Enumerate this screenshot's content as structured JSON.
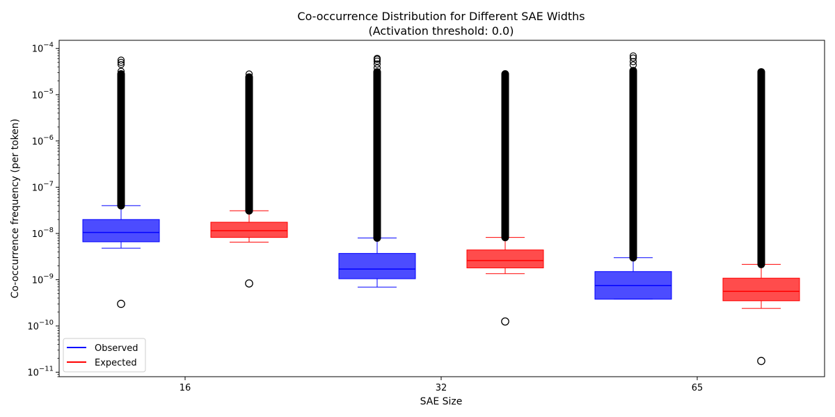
{
  "chart_data": {
    "type": "boxplot",
    "title": "Co-occurrence Distribution for Different SAE Widths",
    "subtitle": "(Activation threshold: 0.0)",
    "xlabel": "SAE Size",
    "ylabel": "Co-occurrence frequency (per token)",
    "yscale": "log",
    "ylim": [
      8e-12,
      0.00015
    ],
    "y_ticks": [
      {
        "value": 1e-11,
        "base": "10",
        "exp": "−11"
      },
      {
        "value": 1e-10,
        "base": "10",
        "exp": "−10"
      },
      {
        "value": 1e-09,
        "base": "10",
        "exp": "−9"
      },
      {
        "value": 1e-08,
        "base": "10",
        "exp": "−8"
      },
      {
        "value": 1e-07,
        "base": "10",
        "exp": "−7"
      },
      {
        "value": 1e-06,
        "base": "10",
        "exp": "−6"
      },
      {
        "value": 1e-05,
        "base": "10",
        "exp": "−5"
      },
      {
        "value": 0.0001,
        "base": "10",
        "exp": "−4"
      }
    ],
    "categories": [
      "16",
      "32",
      "65"
    ],
    "series_colors": {
      "Observed": "#0000ff",
      "Expected": "#ff0000"
    },
    "legend": {
      "position": "lower-left",
      "entries": [
        "Observed",
        "Expected"
      ]
    },
    "boxes": [
      {
        "category": "16",
        "series": "Observed",
        "whisker_low": 4.8e-09,
        "q1": 6.6e-09,
        "median": 1.05e-08,
        "q3": 2e-08,
        "whisker_high": 4e-08,
        "outliers_high_range": [
          4e-08,
          2.8e-05
        ],
        "outliers_high_sparse": [
          3.2e-05,
          4.5e-05,
          5e-05,
          5.6e-05
        ],
        "outliers_low": [
          3e-10
        ]
      },
      {
        "category": "16",
        "series": "Expected",
        "whisker_low": 6.5e-09,
        "q1": 8.2e-09,
        "median": 1.15e-08,
        "q3": 1.75e-08,
        "whisker_high": 3.1e-08,
        "outliers_high_range": [
          3.1e-08,
          2.4e-05
        ],
        "outliers_high_sparse": [
          2.8e-05
        ],
        "outliers_low": [
          8.3e-10
        ]
      },
      {
        "category": "32",
        "series": "Observed",
        "whisker_low": 6.9e-10,
        "q1": 1.05e-09,
        "median": 1.7e-09,
        "q3": 3.7e-09,
        "whisker_high": 8e-09,
        "outliers_high_range": [
          8e-09,
          3.1e-05
        ],
        "outliers_high_sparse": [
          3.8e-05,
          4.6e-05,
          5.3e-05,
          5.8e-05,
          6.1e-05
        ],
        "outliers_low": []
      },
      {
        "category": "32",
        "series": "Expected",
        "whisker_low": 1.35e-09,
        "q1": 1.8e-09,
        "median": 2.6e-09,
        "q3": 4.4e-09,
        "whisker_high": 8.2e-09,
        "outliers_high_range": [
          8.2e-09,
          2.8e-05
        ],
        "outliers_high_sparse": [],
        "outliers_low": [
          1.25e-10
        ]
      },
      {
        "category": "65",
        "series": "Observed",
        "whisker_low": 3.8e-10,
        "q1": 3.8e-10,
        "median": 7.5e-10,
        "q3": 1.5e-09,
        "whisker_high": 3e-09,
        "outliers_high_range": [
          3e-09,
          3.3e-05
        ],
        "outliers_high_sparse": [
          4.4e-05,
          5.2e-05,
          6.2e-05,
          6.9e-05
        ],
        "outliers_low": []
      },
      {
        "category": "65",
        "series": "Expected",
        "whisker_low": 2.4e-10,
        "q1": 3.5e-10,
        "median": 5.6e-10,
        "q3": 1.08e-09,
        "whisker_high": 2.15e-09,
        "outliers_high_range": [
          2.15e-09,
          3.1e-05
        ],
        "outliers_high_sparse": [],
        "outliers_low": [
          1.75e-11
        ]
      }
    ]
  }
}
